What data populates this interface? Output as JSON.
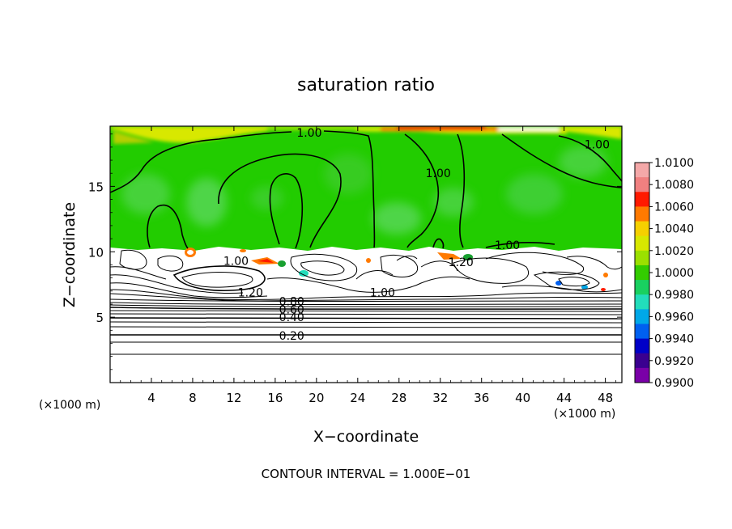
{
  "chart_data": {
    "type": "heatmap",
    "title": "saturation ratio",
    "xlabel": "X−coordinate",
    "ylabel": "Z−coordinate",
    "x_unit_left": "(×1000 m)",
    "x_unit_right": "(×1000 m)",
    "footer": "CONTOUR INTERVAL = 1.000E−01",
    "xlim": [
      0,
      49.6
    ],
    "ylim": [
      0,
      19.6
    ],
    "xticks": [
      4,
      8,
      12,
      16,
      20,
      24,
      28,
      32,
      36,
      40,
      44,
      48
    ],
    "yticks": [
      5,
      10,
      15
    ],
    "colorbar": {
      "labels": [
        "1.0100",
        "1.0080",
        "1.0060",
        "1.0040",
        "1.0020",
        "1.0000",
        "0.9980",
        "0.9960",
        "0.9940",
        "0.9920",
        "0.9900"
      ],
      "colors": [
        "#f4a8a8",
        "#f08080",
        "#ff1a00",
        "#ff7a00",
        "#f5d000",
        "#d8e800",
        "#9be000",
        "#33cc00",
        "#19d060",
        "#22ddbb",
        "#00a8e8",
        "#0060f0",
        "#0000c8",
        "#3a0090",
        "#7a00a8"
      ]
    },
    "contour_labels": [
      {
        "text": "1.00",
        "x": 19.3,
        "y": 19.1
      },
      {
        "text": "1.00",
        "x": 31.8,
        "y": 16.0
      },
      {
        "text": "1.00",
        "x": 47.2,
        "y": 18.2
      },
      {
        "text": "1.00",
        "x": 12.2,
        "y": 9.3
      },
      {
        "text": "1.00",
        "x": 38.5,
        "y": 10.5
      },
      {
        "text": "1.20",
        "x": 34.0,
        "y": 9.2
      },
      {
        "text": "1.20",
        "x": 13.6,
        "y": 6.9
      },
      {
        "text": "1.00",
        "x": 26.4,
        "y": 6.9
      },
      {
        "text": "0.80",
        "x": 17.6,
        "y": 6.2
      },
      {
        "text": "0.60",
        "x": 17.6,
        "y": 5.6
      },
      {
        "text": "0.40",
        "x": 17.6,
        "y": 5.0
      },
      {
        "text": "0.20",
        "x": 17.6,
        "y": 3.6
      }
    ]
  }
}
